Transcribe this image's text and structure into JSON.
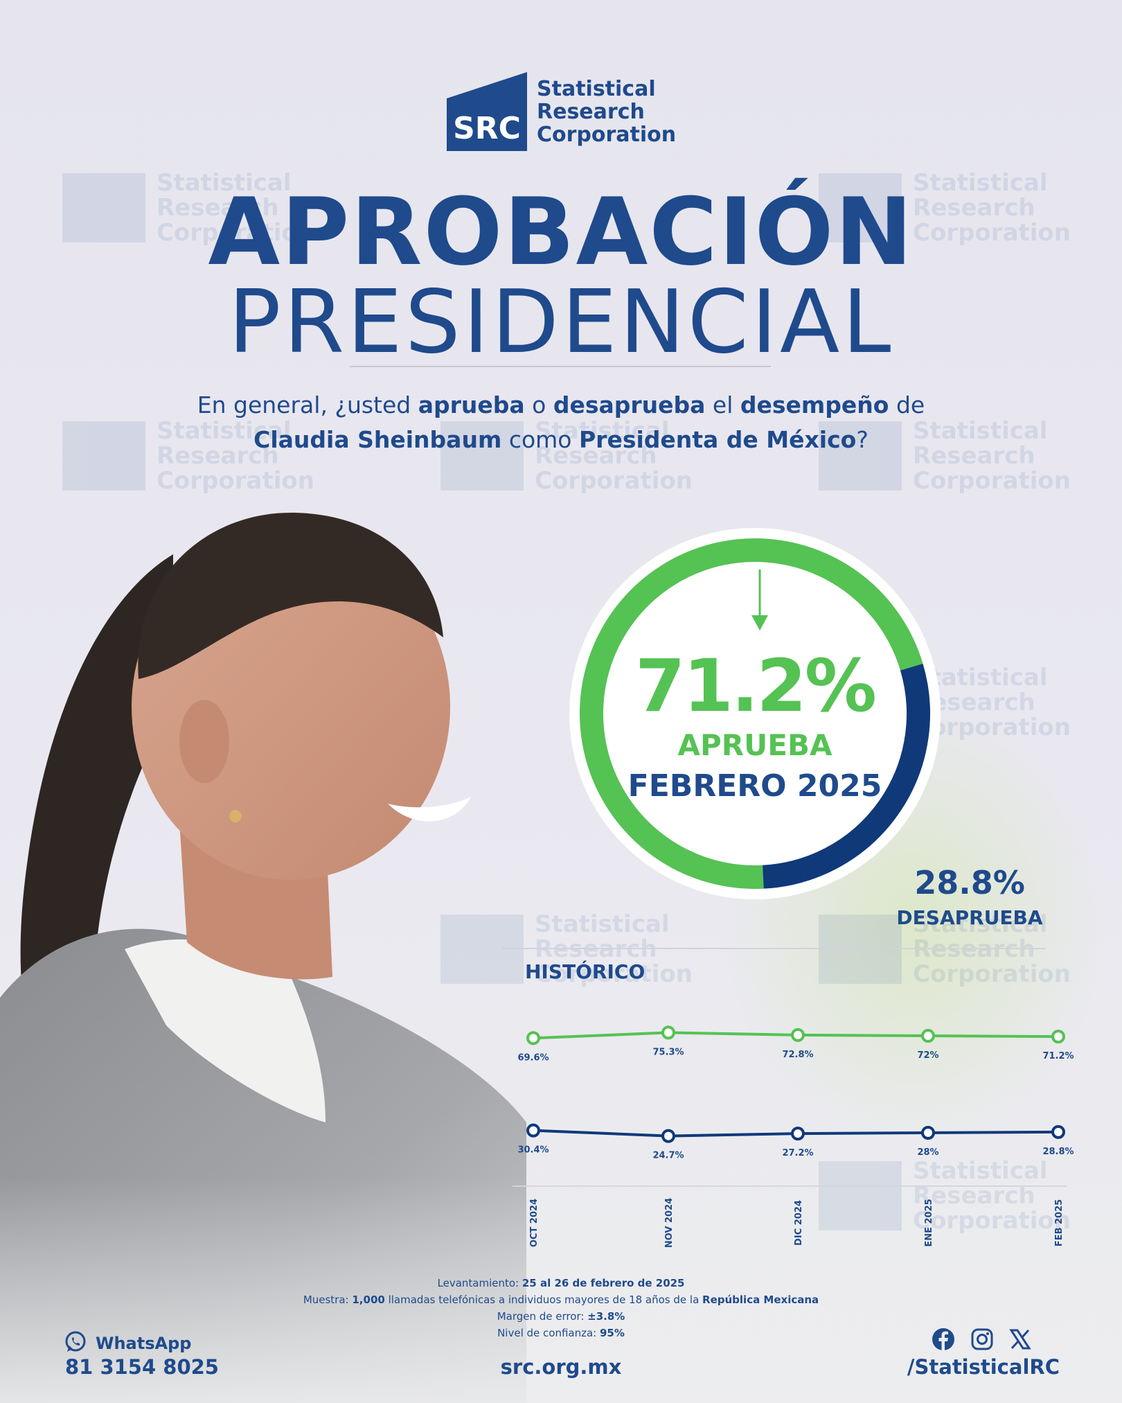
{
  "brand": {
    "logo_letters": "SRC",
    "line1": "Statistical",
    "line2": "Research",
    "line3": "Corporation"
  },
  "title": {
    "line1": "APROBACIÓN",
    "line2": "PRESIDENCIAL"
  },
  "question": {
    "p1": "En general, ¿usted ",
    "b1": "aprueba",
    "p2": " o ",
    "b2": "desaprueba",
    "p3": " el ",
    "b3": "desempeño",
    "p4": " de",
    "b4": "Claudia Sheinbaum",
    "p5": " como ",
    "b5": "Presidenta de México",
    "p6": "?"
  },
  "colors": {
    "navy": "#1f4a8c",
    "green": "#55c254",
    "dark_navy": "#10397a"
  },
  "chart_data": [
    {
      "type": "pie",
      "categories": [
        "APRUEBA",
        "DESAPRUEBA"
      ],
      "values": [
        71.2,
        28.8
      ],
      "value_labels": [
        "71.2%",
        "28.8%"
      ],
      "main_label": "APRUEBA",
      "period": "FEBRERO 2025",
      "colors": [
        "#55c254",
        "#10397a"
      ]
    },
    {
      "type": "line",
      "title": "HISTÓRICO",
      "categories": [
        "OCT 2024",
        "NOV 2024",
        "DIC 2024",
        "ENE 2025",
        "FEB 2025"
      ],
      "series": [
        {
          "values": [
            69.6,
            75.3,
            72.8,
            72,
            71.2
          ],
          "labels": [
            "69.6%",
            "75.3%",
            "72.8%",
            "72%",
            "71.2%"
          ],
          "color": "#55c254"
        },
        {
          "values": [
            30.4,
            24.7,
            27.2,
            28,
            28.8
          ],
          "labels": [
            "30.4%",
            "24.7%",
            "27.2%",
            "28%",
            "28.8%"
          ],
          "color": "#10397a"
        }
      ],
      "grid": false
    }
  ],
  "methodology": {
    "l1_label": "Levantamiento: ",
    "l1_value": "25 al 26 de febrero de 2025",
    "l2_label": "Muestra: ",
    "l2_b1": "1,000",
    "l2_mid": " llamadas telefónicas a individuos mayores de 18 años de la ",
    "l2_b2": "República Mexicana",
    "l3_label": "Margen de error: ",
    "l3_value": "±3.8%",
    "l4_label": "Nivel de confianza: ",
    "l4_value": "95%"
  },
  "footer": {
    "whatsapp_label": "WhatsApp",
    "whatsapp_number": "81 3154 8025",
    "website": "src.org.mx",
    "social_handle": "/StatisticalRC",
    "icons": [
      "whatsapp-icon",
      "facebook-icon",
      "instagram-icon",
      "x-icon"
    ]
  }
}
